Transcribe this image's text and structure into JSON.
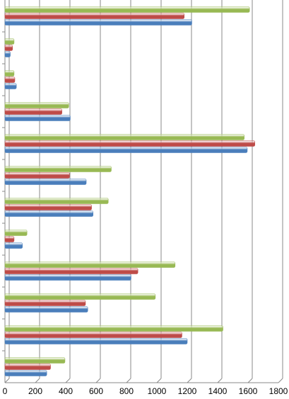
{
  "chart_data": {
    "type": "bar",
    "orientation": "horizontal",
    "categories": [
      null,
      null,
      null,
      null,
      null,
      null,
      null,
      null,
      null,
      null,
      null,
      null
    ],
    "series": [
      {
        "color": "#98b954",
        "values": [
          1610,
          60,
          60,
          420,
          1575,
          700,
          680,
          145,
          1120,
          990,
          1435,
          395
        ]
      },
      {
        "color": "#be4b48",
        "values": [
          1180,
          50,
          65,
          375,
          1645,
          425,
          570,
          60,
          875,
          530,
          1165,
          300
        ]
      },
      {
        "color": "#4a7ebb",
        "values": [
          1230,
          35,
          75,
          430,
          1595,
          535,
          580,
          115,
          830,
          545,
          1200,
          275
        ]
      }
    ],
    "xlim": [
      0,
      1800
    ],
    "xticks": [
      0,
      200,
      400,
      600,
      800,
      1000,
      1200,
      1400,
      1600,
      1800
    ],
    "grid": true
  }
}
